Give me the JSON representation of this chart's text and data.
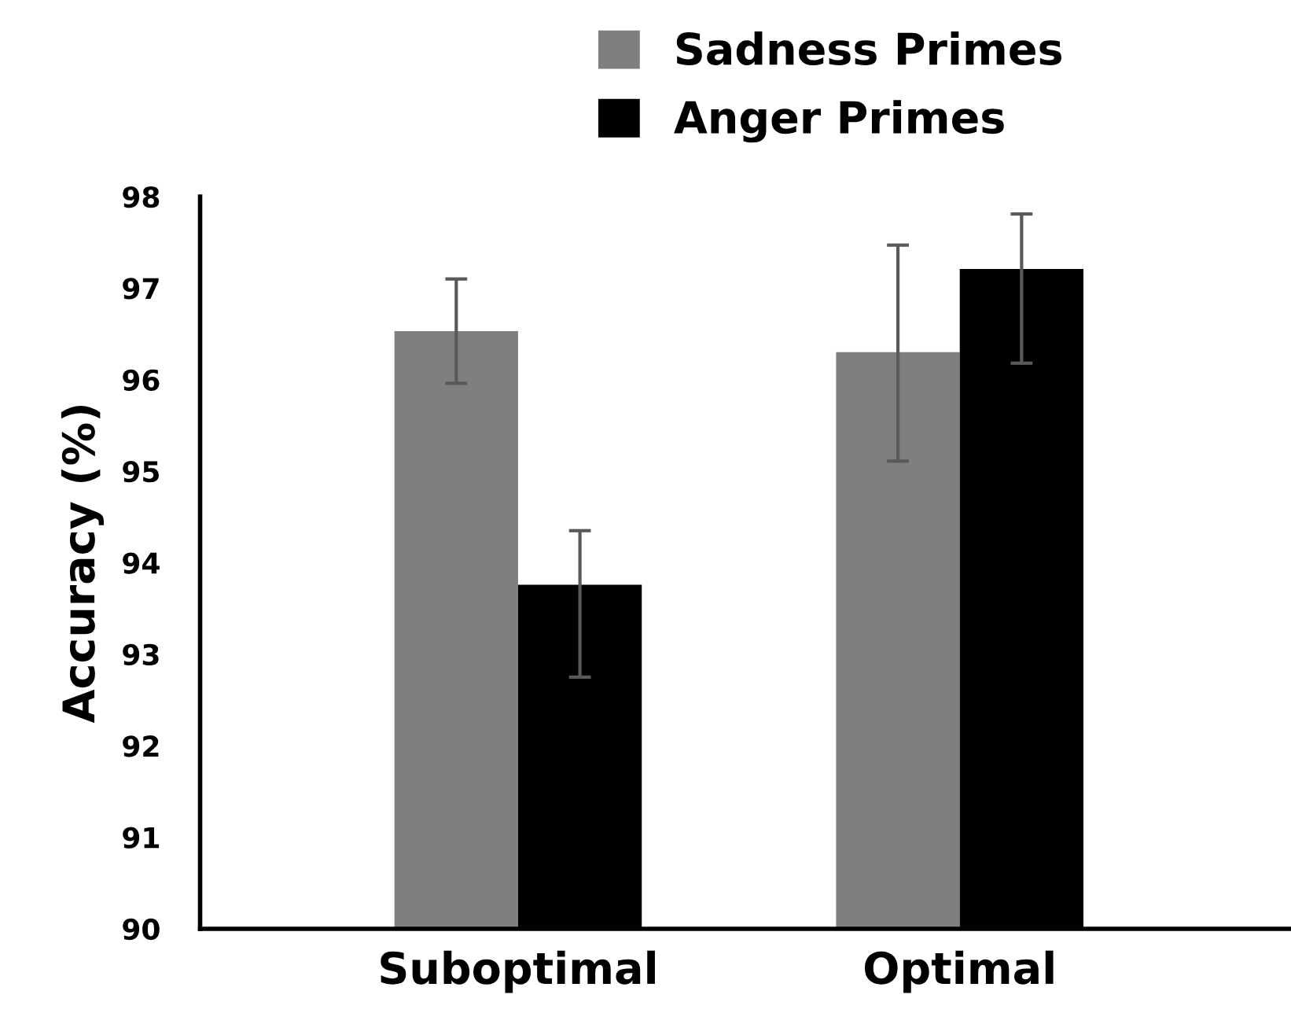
{
  "chart_data": {
    "type": "bar",
    "ylabel": "Accuracy (%)",
    "categories": [
      "Suboptimal",
      "Optimal"
    ],
    "series": [
      {
        "name": "Sadness Primes",
        "color": "#7f7f7f",
        "values": [
          96.53,
          96.3
        ],
        "errors": [
          [
            95.96,
            97.1
          ],
          [
            95.11,
            97.47
          ]
        ]
      },
      {
        "name": "Anger Primes",
        "color": "#000000",
        "values": [
          93.76,
          97.21
        ],
        "errors": [
          [
            92.75,
            94.35
          ],
          [
            96.18,
            97.81
          ]
        ]
      }
    ],
    "ylim": [
      90,
      98
    ],
    "yticks": [
      90,
      91,
      92,
      93,
      94,
      95,
      96,
      97,
      98
    ],
    "grid": false,
    "legend": "top"
  }
}
